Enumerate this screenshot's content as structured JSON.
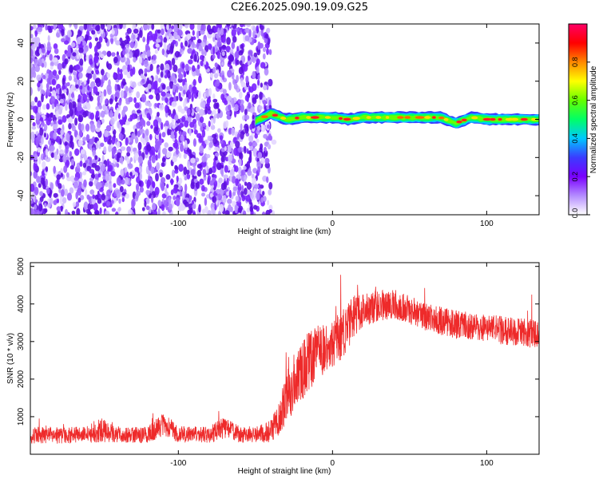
{
  "title": "C2E6.2025.090.19.09.G25",
  "colors": {
    "snr_line": "#ee2a2a",
    "frame": "#000000"
  },
  "chart_data": [
    {
      "type": "heatmap",
      "xlabel": "Height of straight line (km)",
      "ylabel": "Frequency (Hz)",
      "xlim": [
        -196,
        134
      ],
      "ylim": [
        -50,
        50
      ],
      "x_ticks": [
        -100,
        0,
        100
      ],
      "y_ticks": [
        -40,
        -20,
        0,
        20,
        40
      ],
      "colorbar": {
        "label": "Normalized spectral amplitude",
        "range": [
          0.0,
          1.0
        ],
        "ticks": [
          0.0,
          0.2,
          0.4,
          0.6,
          0.8
        ],
        "colormap": [
          "#ffffff",
          "#b48cff",
          "#7a00ff",
          "#3b3bff",
          "#00c8ff",
          "#00ff66",
          "#66ff00",
          "#ffff00",
          "#ff8800",
          "#ff0000",
          "#ff0066"
        ]
      },
      "noise_region": {
        "x_range": [
          -196,
          -40
        ],
        "freq_range": [
          -50,
          50
        ],
        "typical_amplitude": 0.1
      },
      "signal_band": {
        "x": [
          -50,
          -40,
          -30,
          -20,
          -10,
          0,
          10,
          20,
          30,
          40,
          50,
          60,
          70,
          80,
          90,
          100,
          110,
          120,
          134
        ],
        "center_freq": [
          -1,
          3,
          0,
          1,
          1,
          1,
          0,
          1,
          1,
          1,
          1,
          1,
          1,
          -2,
          1,
          0,
          0,
          0,
          0
        ],
        "halfwidth_hz": 3,
        "peak_amplitude": 0.95
      }
    },
    {
      "type": "line",
      "xlabel": "Height of straight line (km)",
      "ylabel": "SNR (10 * v/v)",
      "xlim": [
        -196,
        134
      ],
      "ylim": [
        0,
        5100
      ],
      "x_ticks": [
        -100,
        0,
        100
      ],
      "y_ticks": [
        1000,
        2000,
        3000,
        4000,
        5000
      ],
      "series": [
        {
          "x": [
            -196,
            -180,
            -160,
            -150,
            -140,
            -120,
            -110,
            -100,
            -90,
            -80,
            -70,
            -60,
            -50,
            -40,
            -35,
            -30,
            -25,
            -20,
            -15,
            -10,
            -5,
            0,
            5,
            10,
            15,
            20,
            30,
            40,
            50,
            60,
            70,
            80,
            90,
            100,
            110,
            120,
            134
          ],
          "y": [
            500,
            500,
            520,
            640,
            520,
            520,
            800,
            530,
            530,
            520,
            700,
            520,
            530,
            600,
            900,
            1500,
            1900,
            2200,
            2500,
            2700,
            2800,
            2900,
            3100,
            3400,
            3700,
            3850,
            3950,
            4000,
            3850,
            3650,
            3550,
            3450,
            3400,
            3350,
            3300,
            3250,
            3200
          ],
          "spread": [
            220,
            220,
            220,
            320,
            220,
            220,
            320,
            220,
            220,
            220,
            320,
            220,
            220,
            300,
            500,
            700,
            800,
            800,
            800,
            700,
            650,
            600,
            650,
            700,
            550,
            450,
            420,
            400,
            380,
            380,
            380,
            380,
            380,
            380,
            380,
            380,
            380
          ]
        }
      ]
    }
  ]
}
